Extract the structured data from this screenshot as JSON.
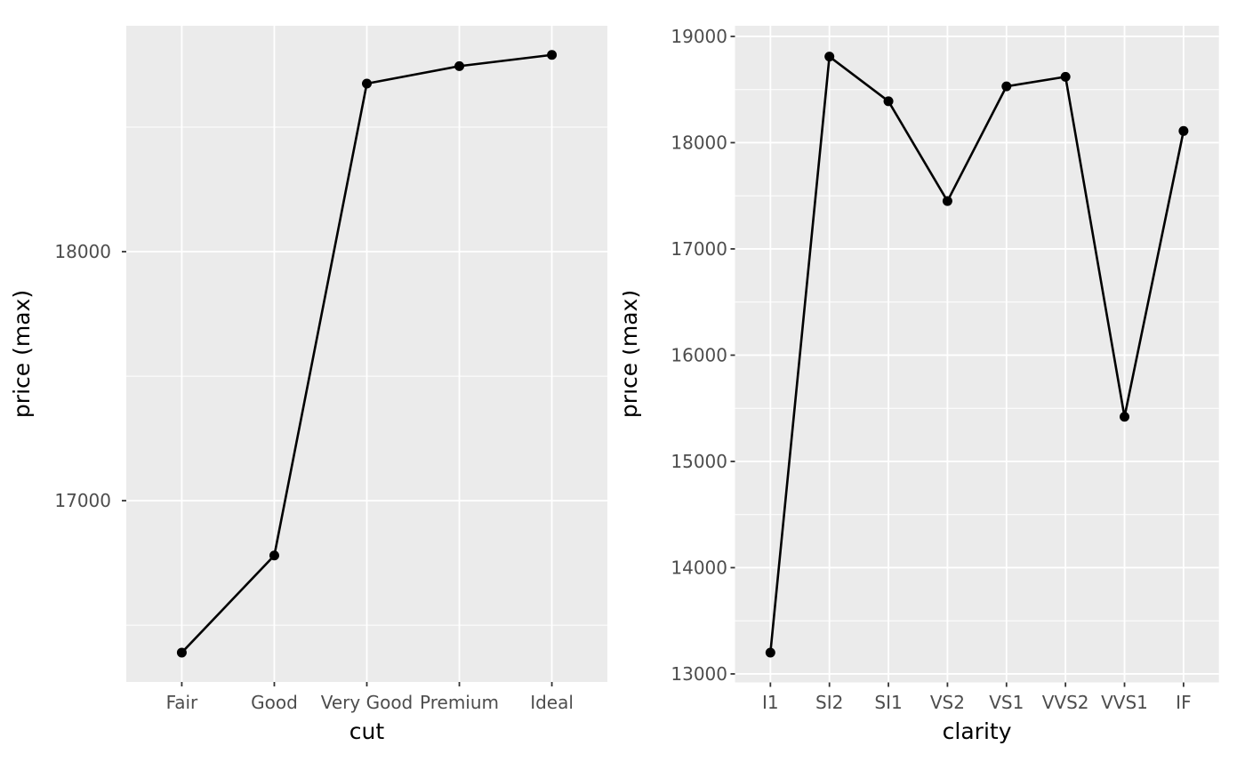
{
  "page": {
    "background": "#FFFFFF",
    "description_title": ""
  },
  "style": {
    "panel_bg": "#EBEBEB",
    "grid_color": "#FFFFFF",
    "line_color": "#000000",
    "point_color": "#000000",
    "tick_mark_color": "#333333",
    "tick_label_color": "#4D4D4D",
    "axis_title_color": "#000000"
  },
  "chart_data": [
    {
      "type": "line",
      "title": "",
      "xlabel": "cut",
      "ylabel": "price (max)",
      "categories": [
        "Fair",
        "Good",
        "Very Good",
        "Premium",
        "Ideal"
      ],
      "values": [
        16390,
        16780,
        18675,
        18745,
        18790
      ],
      "ylim": [
        16272,
        18907
      ],
      "yticks": [
        17000,
        18000
      ],
      "ytick_labels": [
        "17000",
        "18000"
      ],
      "yminor": [
        16500,
        17500,
        18500
      ],
      "grid": true,
      "legend": "none",
      "point_radius": 5.5
    },
    {
      "type": "line",
      "title": "",
      "xlabel": "clarity",
      "ylabel": "price (max)",
      "categories": [
        "I1",
        "SI2",
        "SI1",
        "VS2",
        "VS1",
        "VVS2",
        "VVS1",
        "IF"
      ],
      "values": [
        13200,
        18810,
        18390,
        17450,
        18530,
        18620,
        15420,
        18110
      ],
      "ylim": [
        12920,
        19100
      ],
      "yticks": [
        13000,
        14000,
        15000,
        16000,
        17000,
        18000,
        19000
      ],
      "ytick_labels": [
        "13000",
        "14000",
        "15000",
        "16000",
        "17000",
        "18000",
        "19000"
      ],
      "yminor": [
        13500,
        14500,
        15500,
        16500,
        17500,
        18500
      ],
      "grid": true,
      "legend": "none",
      "point_radius": 5.5
    }
  ]
}
